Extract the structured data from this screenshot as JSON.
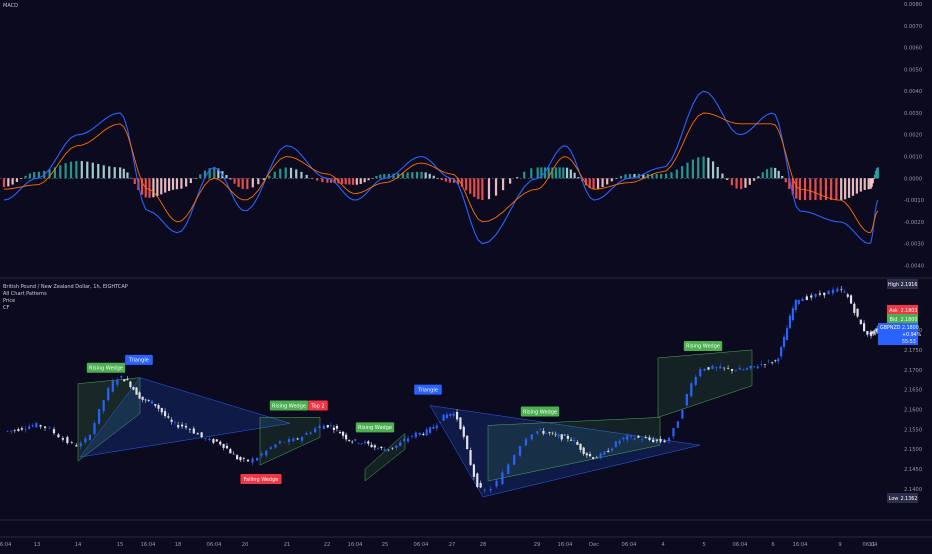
{
  "macd_panel": {
    "title": "MACD",
    "yticks": [
      "0.0080",
      "0.0070",
      "0.0060",
      "0.0050",
      "0.0040",
      "0.0030",
      "0.0020",
      "0.0010",
      "0.0000",
      "-0.0010",
      "-0.0020",
      "-0.0030",
      "-0.0040"
    ],
    "ytick_values": [
      0.008,
      0.007,
      0.006,
      0.005,
      0.004,
      0.003,
      0.002,
      0.001,
      0,
      -0.001,
      -0.002,
      -0.003,
      -0.004
    ]
  },
  "price_panel": {
    "legend": [
      "British Pound / New Zealand Dollar, 1h, EIGHTCAP",
      "All Chart Patterns",
      "Price",
      "CF"
    ],
    "yticks": [
      "2.1800",
      "2.1750",
      "2.1700",
      "2.1650",
      "2.1600",
      "2.1550",
      "2.1500",
      "2.1450",
      "2.1400"
    ],
    "ytick_values": [
      2.18,
      2.175,
      2.17,
      2.165,
      2.16,
      2.155,
      2.15,
      2.145,
      2.14
    ],
    "high_label": "High",
    "high_value": "2.1916",
    "ask_label": "Ask",
    "ask_value": "2.1803",
    "bid_label": "Bid",
    "bid_value": "2.1800",
    "symbol_label": "GBPNZD",
    "last_value": "2.1800",
    "change_value": "+0.94%",
    "countdown": "55:53",
    "low_label": "Low",
    "low_value": "2.1362",
    "colors": {
      "high": "#2a2e4a",
      "ask": "#f23645",
      "bid": "#4caf50",
      "symbol": "#2962ff",
      "low": "#2a2e4a"
    }
  },
  "x_axis": {
    "labels": [
      "06:04",
      "13",
      "14",
      "15",
      "16:04",
      "18",
      "06:04",
      "20",
      "21",
      "22",
      "16:04",
      "25",
      "06:04",
      "27",
      "28",
      "29",
      "16:04",
      "Dec",
      "06:04",
      "4",
      "5",
      "06:04",
      "6",
      "16:04",
      "9",
      "06:04",
      "11"
    ]
  },
  "patterns": [
    {
      "label": "Rising Wedge",
      "color": "#4caf50"
    },
    {
      "label": "Triangle",
      "color": "#2962ff"
    },
    {
      "label": "Rising Wedge",
      "color": "#4caf50"
    },
    {
      "label": "Top 2",
      "color": "#f23645"
    },
    {
      "label": "Rising Wedge",
      "color": "#4caf50"
    },
    {
      "label": "Falling Wedge",
      "color": "#f23645"
    },
    {
      "label": "Triangle",
      "color": "#2962ff"
    },
    {
      "label": "Rising Wedge",
      "color": "#4caf50"
    },
    {
      "label": "Rising Wedge",
      "color": "#4caf50"
    }
  ],
  "chart_data": {
    "type": "line",
    "title": "British Pound / New Zealand Dollar, 1h, EIGHTCAP",
    "xlabel": "",
    "ylabel": "",
    "price_ylim": [
      2.1362,
      2.1916
    ],
    "price_series": {
      "name": "Price",
      "x": [
        "06:04",
        "13",
        "14",
        "15",
        "16:04",
        "18",
        "06:04",
        "20",
        "21",
        "22",
        "16:04",
        "25",
        "06:04",
        "27",
        "28",
        "29",
        "16:04",
        "Dec",
        "06:04",
        "4",
        "5",
        "06:04",
        "6",
        "16:04",
        "9",
        "06:04",
        "11"
      ],
      "values": [
        2.1545,
        2.156,
        2.151,
        2.168,
        2.162,
        2.156,
        2.152,
        2.147,
        2.152,
        2.156,
        2.152,
        2.15,
        2.154,
        2.159,
        2.1395,
        2.1545,
        2.153,
        2.148,
        2.153,
        2.152,
        2.1705,
        2.17,
        2.172,
        2.188,
        2.19,
        2.179,
        2.18
      ]
    },
    "macd_ylim": [
      -0.0043,
      0.008
    ],
    "macd_series": [
      {
        "name": "MACD",
        "values": [
          -0.001,
          0.0,
          0.002,
          0.003,
          -0.0015,
          -0.0025,
          0.0005,
          -0.0015,
          0.0015,
          0.0,
          -0.001,
          0.0,
          0.001,
          0.0,
          -0.003,
          0.0,
          0.0015,
          -0.001,
          0.0,
          0.0005,
          0.004,
          0.002,
          0.003,
          -0.0015,
          -0.002,
          -0.003,
          -0.001
        ]
      },
      {
        "name": "Signal",
        "values": [
          -0.0005,
          -0.0003,
          0.0015,
          0.0025,
          -0.0005,
          -0.002,
          0.0,
          -0.001,
          0.001,
          0.0002,
          -0.0007,
          -0.0002,
          0.0007,
          0.0002,
          -0.002,
          -0.0005,
          0.001,
          -0.0005,
          -0.0002,
          0.0003,
          0.003,
          0.0025,
          0.0025,
          -0.0005,
          -0.001,
          -0.0025,
          -0.0015
        ]
      },
      {
        "name": "Histogram",
        "values": [
          -0.0004,
          0.0003,
          0.0008,
          0.0005,
          -0.0009,
          -0.0005,
          0.0005,
          -0.0005,
          0.0005,
          -0.0002,
          -0.0003,
          0.0002,
          0.0003,
          -0.0002,
          -0.001,
          0.0005,
          0.0005,
          -0.0005,
          0.0002,
          0.0002,
          0.001,
          -0.0005,
          0.0005,
          -0.001,
          -0.001,
          -0.0005,
          0.0005
        ]
      }
    ],
    "macd_zero_value": 0.0
  }
}
